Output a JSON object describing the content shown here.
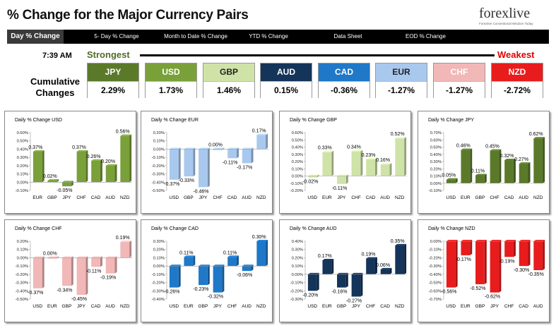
{
  "header": {
    "title": "% Change for the Major Currency Pairs",
    "logo_text": "forexlive",
    "logo_tagline": "Forexlive Conventional Wisdom Today"
  },
  "nav": {
    "tabs": [
      "Day % Change",
      "5- Day % Change",
      "Month to Date % Change",
      "YTD % Change",
      "Data Sheet",
      "EOD % Change"
    ],
    "active": "Day % Change"
  },
  "timestamp": "7:39 AM",
  "ranking": {
    "strongest_label": "Strongest",
    "weakest_label": "Weakest",
    "cumulative_label": "Cumulative Changes",
    "items": [
      {
        "currency": "JPY",
        "value": "2.29%",
        "color": "#5a7a2a",
        "text_color": "#ffffff"
      },
      {
        "currency": "USD",
        "value": "1.73%",
        "color": "#7aa03a",
        "text_color": "#ffffff"
      },
      {
        "currency": "GBP",
        "value": "1.46%",
        "color": "#cfe3a8",
        "text_color": "#222222"
      },
      {
        "currency": "AUD",
        "value": "0.15%",
        "color": "#14345a",
        "text_color": "#ffffff"
      },
      {
        "currency": "CAD",
        "value": "-0.36%",
        "color": "#1f78c8",
        "text_color": "#ffffff"
      },
      {
        "currency": "EUR",
        "value": "-1.27%",
        "color": "#a9c8ee",
        "text_color": "#222222"
      },
      {
        "currency": "CHF",
        "value": "-1.27%",
        "color": "#f2b7b7",
        "text_color": "#ffffff"
      },
      {
        "currency": "NZD",
        "value": "-2.72%",
        "color": "#e81c1c",
        "text_color": "#ffffff"
      }
    ]
  },
  "chart_data": [
    {
      "type": "bar",
      "title": "Daily % Change USD",
      "color": "#7aa03a",
      "categories": [
        "EUR",
        "GBP",
        "JPY",
        "CHF",
        "CAD",
        "AUD",
        "NZD"
      ],
      "values": [
        0.37,
        0.02,
        -0.05,
        0.37,
        0.26,
        0.2,
        0.56
      ],
      "value_labels": [
        "0.37%",
        "0.02%",
        "-0.05%",
        "0.37%",
        "0.26%",
        "0.20%",
        "0.56%"
      ],
      "ylim": [
        -0.1,
        0.6
      ],
      "yticks": [
        "-0.10%",
        "0.00%",
        "0.10%",
        "0.20%",
        "0.30%",
        "0.40%",
        "0.50%",
        "0.60%"
      ]
    },
    {
      "type": "bar",
      "title": "Daily % Change EUR",
      "color": "#a9c8ee",
      "categories": [
        "USD",
        "GBP",
        "JPY",
        "CHF",
        "CAD",
        "AUD",
        "NZD"
      ],
      "values": [
        -0.37,
        -0.33,
        -0.46,
        0.0,
        -0.11,
        -0.17,
        0.17
      ],
      "value_labels": [
        "-0.37%",
        "-0.33%",
        "-0.46%",
        "0.00%",
        "-0.11%",
        "-0.17%",
        "0.17%"
      ],
      "ylim": [
        -0.5,
        0.2
      ],
      "yticks": [
        "-0.50%",
        "-0.40%",
        "-0.30%",
        "-0.20%",
        "-0.10%",
        "0.00%",
        "0.10%",
        "0.20%"
      ]
    },
    {
      "type": "bar",
      "title": "Daily % Change GBP",
      "color": "#cfe3a8",
      "categories": [
        "USD",
        "EUR",
        "JPY",
        "CHF",
        "CAD",
        "AUD",
        "NZD"
      ],
      "values": [
        -0.02,
        0.33,
        -0.11,
        0.34,
        0.23,
        0.16,
        0.52
      ],
      "value_labels": [
        "-0.02%",
        "0.33%",
        "-0.11%",
        "0.34%",
        "0.23%",
        "0.16%",
        "0.52%"
      ],
      "ylim": [
        -0.2,
        0.6
      ],
      "yticks": [
        "-0.20%",
        "-0.10%",
        "0.00%",
        "0.10%",
        "0.20%",
        "0.30%",
        "0.40%",
        "0.50%",
        "0.60%"
      ]
    },
    {
      "type": "bar",
      "title": "Daily % Change JPY",
      "color": "#5a7a2a",
      "categories": [
        "USD",
        "EUR",
        "GBP",
        "CHF",
        "CAD",
        "AUD",
        "NZD"
      ],
      "values": [
        0.05,
        0.46,
        0.11,
        0.45,
        0.32,
        0.27,
        0.62
      ],
      "value_labels": [
        "0.05%",
        "0.46%",
        "0.11%",
        "0.45%",
        "0.32%",
        "0.27%",
        "0.62%"
      ],
      "ylim": [
        -0.1,
        0.7
      ],
      "yticks": [
        "-0.10%",
        "0.00%",
        "0.10%",
        "0.20%",
        "0.30%",
        "0.40%",
        "0.50%",
        "0.60%",
        "0.70%"
      ]
    },
    {
      "type": "bar",
      "title": "Daily % Change CHF",
      "color": "#f2b7b7",
      "categories": [
        "USD",
        "EUR",
        "GBP",
        "JPY",
        "CAD",
        "AUD",
        "NZD"
      ],
      "values": [
        -0.37,
        0.0,
        -0.34,
        -0.45,
        -0.11,
        -0.19,
        0.19
      ],
      "value_labels": [
        "-0.37%",
        "0.00%",
        "-0.34%",
        "-0.45%",
        "-0.11%",
        "-0.19%",
        "0.19%"
      ],
      "ylim": [
        -0.5,
        0.2
      ],
      "yticks": [
        "-0.50%",
        "-0.40%",
        "-0.30%",
        "-0.20%",
        "-0.10%",
        "0.00%",
        "0.10%",
        "0.20%"
      ]
    },
    {
      "type": "bar",
      "title": "Daily % Change CAD",
      "color": "#1f78c8",
      "categories": [
        "USD",
        "EUR",
        "GBP",
        "JPY",
        "CHF",
        "AUD",
        "NZD"
      ],
      "values": [
        -0.26,
        0.11,
        -0.23,
        -0.32,
        0.11,
        -0.06,
        0.3
      ],
      "value_labels": [
        "-0.26%",
        "0.11%",
        "-0.23%",
        "-0.32%",
        "0.11%",
        "-0.06%",
        "0.30%"
      ],
      "ylim": [
        -0.4,
        0.3
      ],
      "yticks": [
        "-0.40%",
        "-0.30%",
        "-0.20%",
        "-0.10%",
        "0.00%",
        "0.10%",
        "0.20%",
        "0.30%"
      ]
    },
    {
      "type": "bar",
      "title": "Daily % Change AUD",
      "color": "#14345a",
      "categories": [
        "USD",
        "EUR",
        "GBP",
        "JPY",
        "CHF",
        "CAD",
        "NZD"
      ],
      "values": [
        -0.2,
        0.17,
        -0.16,
        -0.27,
        0.19,
        0.06,
        0.35
      ],
      "value_labels": [
        "-0.20%",
        "0.17%",
        "-0.16%",
        "-0.27%",
        "0.19%",
        "0.06%",
        "0.35%"
      ],
      "ylim": [
        -0.3,
        0.4
      ],
      "yticks": [
        "-0.30%",
        "-0.20%",
        "-0.10%",
        "0.00%",
        "0.10%",
        "0.20%",
        "0.30%",
        "0.40%"
      ]
    },
    {
      "type": "bar",
      "title": "Daily % Change NZD",
      "color": "#e81c1c",
      "categories": [
        "USD",
        "EUR",
        "GBP",
        "JPY",
        "CHF",
        "CAD",
        "AUD"
      ],
      "values": [
        -0.56,
        -0.17,
        -0.52,
        -0.62,
        -0.19,
        -0.3,
        -0.35
      ],
      "value_labels": [
        "-0.56%",
        "-0.17%",
        "-0.52%",
        "-0.62%",
        "-0.19%",
        "-0.30%",
        "-0.35%"
      ],
      "ylim": [
        -0.7,
        0.0
      ],
      "yticks": [
        "-0.70%",
        "-0.60%",
        "-0.50%",
        "-0.40%",
        "-0.30%",
        "-0.20%",
        "-0.10%",
        "0.00%"
      ]
    }
  ]
}
